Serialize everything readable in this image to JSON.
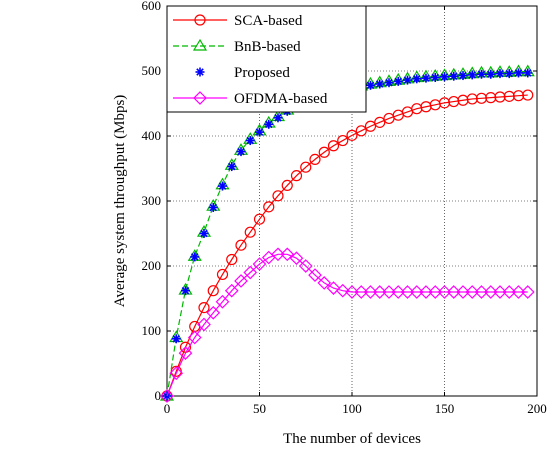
{
  "chart_data": {
    "type": "line",
    "xlabel": "The number of devices",
    "ylabel": "Average system throughput (Mbps)",
    "xlim": [
      0,
      200
    ],
    "ylim": [
      0,
      600
    ],
    "xticks": [
      0,
      50,
      100,
      150,
      200
    ],
    "yticks": [
      0,
      100,
      200,
      300,
      400,
      500,
      600
    ],
    "grid": true,
    "legend_position": "top-left",
    "x": [
      0,
      5,
      10,
      15,
      20,
      25,
      30,
      35,
      40,
      45,
      50,
      55,
      60,
      65,
      70,
      75,
      80,
      85,
      90,
      95,
      100,
      105,
      110,
      115,
      120,
      125,
      130,
      135,
      140,
      145,
      150,
      155,
      160,
      165,
      170,
      175,
      180,
      185,
      190,
      195
    ],
    "series": [
      {
        "name": "SCA-based",
        "color": "#ff0000",
        "marker": "circle",
        "line": "solid",
        "values": [
          0,
          38,
          75,
          107,
          136,
          162,
          187,
          210,
          232,
          252,
          272,
          291,
          308,
          324,
          339,
          352,
          364,
          375,
          385,
          393,
          401,
          408,
          415,
          421,
          427,
          432,
          437,
          442,
          445,
          448,
          451,
          453,
          455,
          457,
          458,
          459,
          460,
          461,
          462,
          463
        ]
      },
      {
        "name": "BnB-based",
        "color": "#00b800",
        "marker": "triangle",
        "line": "dashed",
        "values": [
          0,
          90,
          163,
          215,
          252,
          292,
          325,
          355,
          378,
          395,
          408,
          420,
          430,
          440,
          448,
          453,
          459,
          463,
          467,
          471,
          474,
          477,
          480,
          482,
          484,
          486,
          488,
          490,
          491,
          492,
          493,
          494,
          495,
          496,
          497,
          497,
          498,
          498,
          499,
          499
        ]
      },
      {
        "name": "Proposed",
        "color": "#0000ff",
        "marker": "asterisk",
        "line": "none",
        "values": [
          0,
          88,
          162,
          214,
          250,
          290,
          323,
          353,
          376,
          393,
          406,
          418,
          428,
          438,
          446,
          451,
          457,
          461,
          465,
          469,
          472,
          475,
          478,
          480,
          482,
          484,
          486,
          488,
          489,
          490,
          491,
          492,
          493,
          494,
          495,
          495,
          496,
          496,
          497,
          497
        ]
      },
      {
        "name": "OFDMA-based",
        "color": "#ff00ff",
        "marker": "diamond",
        "line": "solid",
        "values": [
          0,
          35,
          66,
          90,
          110,
          128,
          145,
          162,
          177,
          190,
          203,
          213,
          218,
          218,
          212,
          200,
          186,
          174,
          166,
          162,
          160,
          160,
          160,
          160,
          160,
          160,
          160,
          160,
          160,
          160,
          160,
          160,
          160,
          160,
          160,
          160,
          160,
          160,
          160,
          160
        ]
      }
    ]
  }
}
